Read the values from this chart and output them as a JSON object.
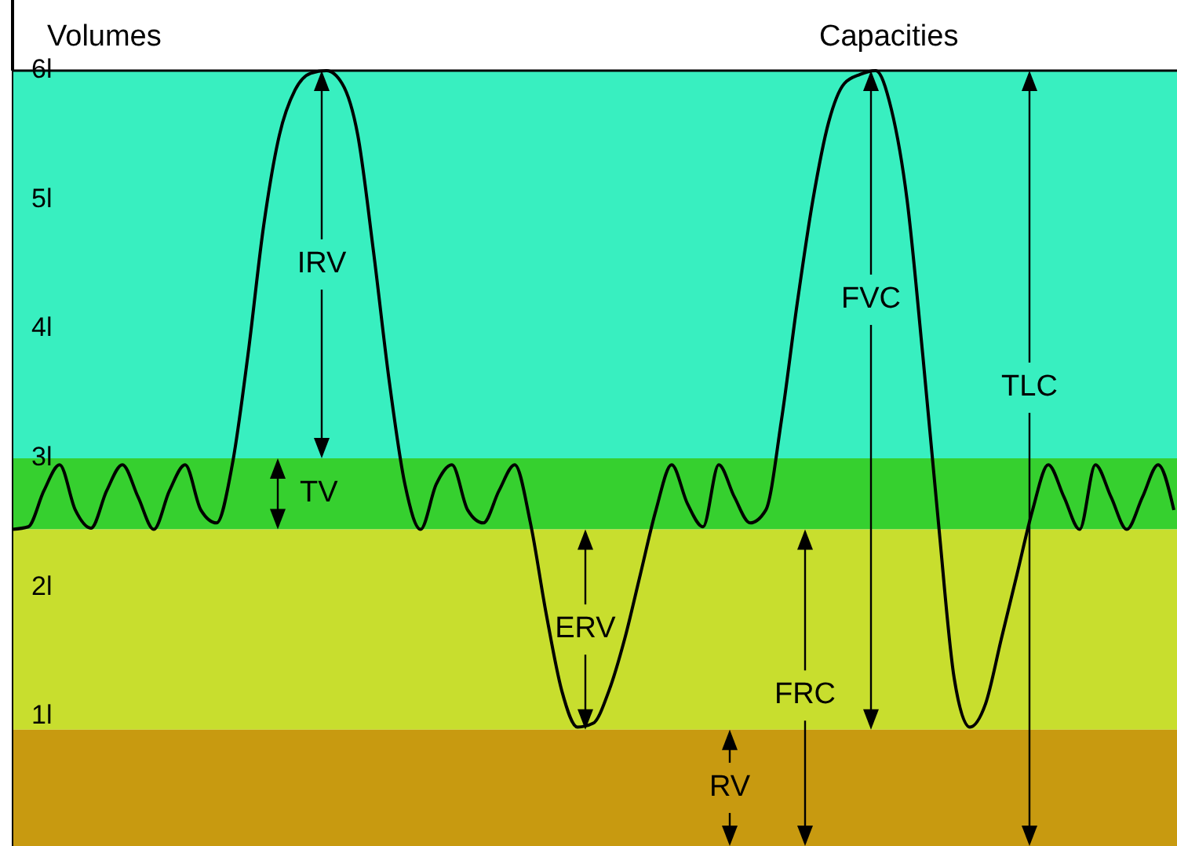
{
  "chart_data": {
    "type": "line",
    "annotations": [
      "Volumes",
      "Capacities",
      "FRC",
      "FVC",
      "TLC"
    ],
    "categories": [
      null,
      null,
      null,
      null,
      null,
      null,
      null,
      null,
      null,
      null,
      null,
      null,
      null,
      null,
      null,
      null,
      null,
      null,
      null,
      null,
      null,
      null,
      null,
      null,
      null,
      null,
      null,
      null,
      null,
      null,
      null,
      null,
      null,
      null,
      null,
      null,
      null,
      null,
      null,
      null,
      null,
      null,
      null,
      null,
      null,
      null,
      null,
      null,
      null,
      null,
      null,
      null,
      null,
      null,
      null,
      null,
      null,
      null,
      null,
      null,
      null,
      null,
      null,
      null,
      null,
      null,
      null,
      null,
      null,
      null,
      null,
      null,
      null,
      null,
      null
    ],
    "series": [
      {
        "color": "#000000",
        "values": [
          2.45,
          2.47,
          2.75,
          2.95,
          2.6,
          2.46,
          2.75,
          2.95,
          2.7,
          2.45,
          2.75,
          2.95,
          2.6,
          2.5,
          2.95,
          3.8,
          4.8,
          5.5,
          5.85,
          5.98,
          6.0,
          5.9,
          5.5,
          4.6,
          3.6,
          2.8,
          2.45,
          2.8,
          2.95,
          2.6,
          2.5,
          2.75,
          2.95,
          2.5,
          1.8,
          1.2,
          0.92,
          0.95,
          1.2,
          1.6,
          2.1,
          2.6,
          2.95,
          2.65,
          2.47,
          2.95,
          2.7,
          2.5,
          2.6,
          3.3,
          4.2,
          5.0,
          5.6,
          5.9,
          5.97,
          6.0,
          5.7,
          5.0,
          3.8,
          2.5,
          1.3,
          0.92,
          1.1,
          1.6,
          2.1,
          2.6,
          2.95,
          2.7,
          2.45,
          2.95,
          2.7,
          2.45,
          2.7,
          2.95,
          2.6
        ]
      }
    ],
    "ylim": [
      0,
      6
    ],
    "yticks": [
      {
        "value": 1,
        "label": "1l"
      },
      {
        "value": 2,
        "label": "2l"
      },
      {
        "value": 3,
        "label": "3l"
      },
      {
        "value": 4,
        "label": "4l"
      },
      {
        "value": 5,
        "label": "5l"
      },
      {
        "value": 6,
        "label": "6l"
      }
    ],
    "bands": [
      {
        "axis": "y",
        "from": 3,
        "to": 6,
        "label": "IRV",
        "color": "#38efc0"
      },
      {
        "axis": "y",
        "from": 2.45,
        "to": 3,
        "label": "TV",
        "color": "#36d02f"
      },
      {
        "axis": "y",
        "from": 0.9,
        "to": 2.45,
        "label": "ERV",
        "color": "#c8de2e"
      },
      {
        "axis": "y",
        "from": 0,
        "to": 0.9,
        "label": "RV",
        "color": "#c89a10"
      }
    ],
    "grid": false,
    "marker": "none",
    "line_style": "solid"
  }
}
